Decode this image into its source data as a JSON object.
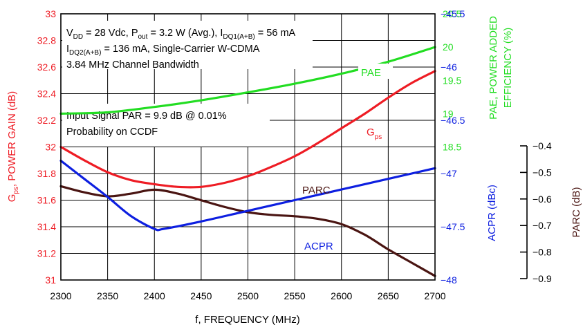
{
  "chart_data": {
    "type": "line",
    "xlabel": "f, FREQUENCY (MHz)",
    "x_ticks": [
      "2300",
      "2350",
      "2400",
      "2450",
      "2500",
      "2550",
      "2600",
      "2650",
      "2700"
    ],
    "xlim": [
      2300,
      2700
    ],
    "axes": {
      "gain": {
        "label_main": "G",
        "label_sub": "ps",
        "label_rest": ", POWER GAIN (dB)",
        "color": "#ee1c24",
        "ylim": [
          31,
          33
        ],
        "ticks": [
          "31",
          "31.2",
          "31.4",
          "31.6",
          "31.8",
          "32",
          "32.2",
          "32.4",
          "32.6",
          "32.8",
          "33"
        ]
      },
      "pae": {
        "label_line1": "PAE, POWER ADDED",
        "label_line2": "EFFICIENCY (%)",
        "color": "#22dd22",
        "ylim": [
          16.5,
          20.5
        ],
        "ticks": [
          "18.5",
          "19",
          "19.5",
          "20",
          "20.5"
        ]
      },
      "acpr": {
        "label": "ACPR (dBc)",
        "color": "#0d1fe0",
        "ylim": [
          -48,
          -45.5
        ],
        "ticks": [
          "−45.5",
          "−46",
          "−46.5",
          "−47",
          "−47.5",
          "−48"
        ]
      },
      "parc": {
        "label": "PARC (dB)",
        "color": "#4a1512",
        "ylim": [
          -0.9,
          -0.4
        ],
        "ticks": [
          "−0.4",
          "−0.5",
          "−0.6",
          "−0.7",
          "−0.8",
          "−0.9"
        ]
      }
    },
    "series": [
      {
        "name": "PAE",
        "axis": "pae",
        "x": [
          2300,
          2350,
          2400,
          2450,
          2500,
          2550,
          2600,
          2650,
          2700
        ],
        "values": [
          19.0,
          19.02,
          19.1,
          19.2,
          19.32,
          19.45,
          19.6,
          19.78,
          20.0
        ]
      },
      {
        "name": "G",
        "name_sub": "ps",
        "axis": "gain",
        "x": [
          2300,
          2325,
          2350,
          2375,
          2400,
          2425,
          2450,
          2475,
          2500,
          2525,
          2550,
          2575,
          2600,
          2625,
          2650,
          2675,
          2700
        ],
        "values": [
          32.0,
          31.9,
          31.81,
          31.75,
          31.72,
          31.7,
          31.7,
          31.73,
          31.78,
          31.85,
          31.93,
          32.03,
          32.14,
          32.25,
          32.37,
          32.48,
          32.57
        ]
      },
      {
        "name": "PARC",
        "axis": "parc",
        "x": [
          2300,
          2325,
          2350,
          2375,
          2400,
          2425,
          2450,
          2475,
          2500,
          2525,
          2550,
          2575,
          2600,
          2625,
          2650,
          2675,
          2700
        ],
        "values": [
          -0.552,
          -0.575,
          -0.59,
          -0.58,
          -0.565,
          -0.58,
          -0.605,
          -0.63,
          -0.65,
          -0.66,
          -0.665,
          -0.675,
          -0.695,
          -0.735,
          -0.79,
          -0.84,
          -0.89
        ]
      },
      {
        "name": "ACPR",
        "axis": "acpr",
        "x": [
          2300,
          2325,
          2350,
          2375,
          2400,
          2410,
          2450,
          2500,
          2550,
          2600,
          2650,
          2700
        ],
        "values": [
          -46.88,
          -47.05,
          -47.22,
          -47.4,
          -47.52,
          -47.52,
          -47.45,
          -47.35,
          -47.25,
          -47.15,
          -47.05,
          -46.95
        ]
      }
    ],
    "annotations": {
      "cond_line1": {
        "p1": "V",
        "p1_sub": "DD",
        "p2": " = 28 Vdc, P",
        "p2_sub": "out",
        "p3": " = 3.2 W (Avg.), I",
        "p3_sub": "DQ1(A+B)",
        "p4": " = 56 mA"
      },
      "cond_line2": {
        "p1": "I",
        "p1_sub": "DQ2(A+B)",
        "p2": " = 136 mA, Single-Carrier W-CDMA"
      },
      "cond_line3": "3.84 MHz Channel Bandwidth",
      "par_line1": "Input Signal PAR = 9.9 dB @ 0.01%",
      "par_line2": "Probability on CCDF"
    }
  }
}
